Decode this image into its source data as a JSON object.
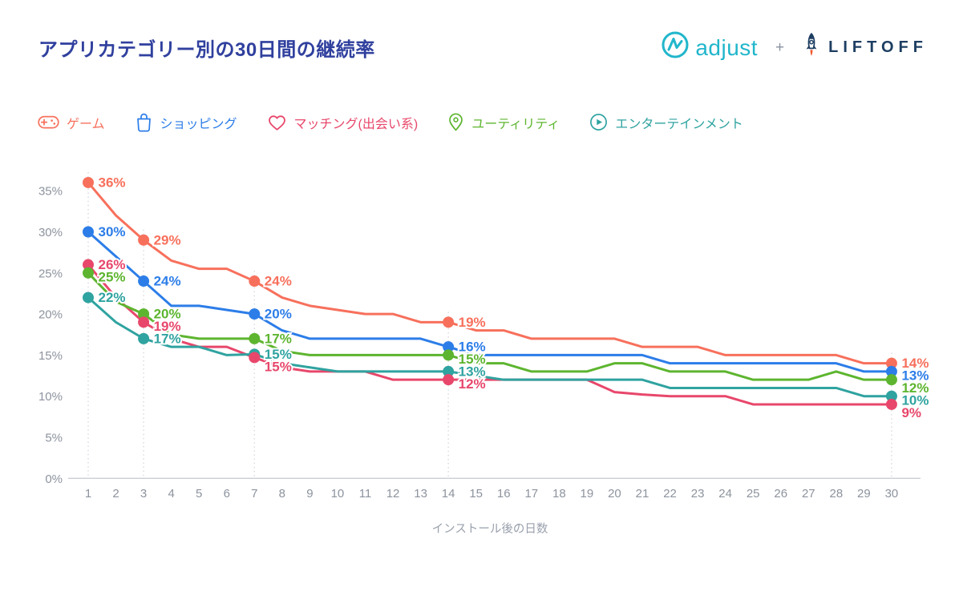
{
  "header": {
    "title": "アプリカテゴリー別の30日間の継続率",
    "title_color": "#30409E",
    "brand": {
      "adjust": "adjust",
      "adjust_color": "#21B6CB",
      "plus": "+",
      "liftoff": "LIFTOFF",
      "liftoff_color": "#1E3E62",
      "rocket_flame_color": "#F05A30"
    }
  },
  "legend": {
    "items": [
      {
        "id": "games",
        "label": "ゲーム",
        "color": "#F7705C",
        "icon": "gamepad-icon"
      },
      {
        "id": "shopping",
        "label": "ショッピング",
        "color": "#2C7DE8",
        "icon": "shopping-bag-icon"
      },
      {
        "id": "dating",
        "label": "マッチング(出会い系)",
        "color": "#E8476B",
        "icon": "heart-icon"
      },
      {
        "id": "utility",
        "label": "ユーティリティ",
        "color": "#5DB52F",
        "icon": "location-pin-icon"
      },
      {
        "id": "entertainment",
        "label": "エンターテインメント",
        "color": "#2FA3A0",
        "icon": "play-circle-icon"
      }
    ]
  },
  "chart_data": {
    "type": "line",
    "title": "アプリカテゴリー別の30日間の継続率",
    "xlabel": "インストール後の日数",
    "x": [
      1,
      2,
      3,
      4,
      5,
      6,
      7,
      8,
      9,
      10,
      11,
      12,
      13,
      14,
      15,
      16,
      17,
      18,
      19,
      20,
      21,
      22,
      23,
      24,
      25,
      26,
      27,
      28,
      29,
      30
    ],
    "ylim": [
      0,
      37
    ],
    "yticks": [
      0,
      5,
      10,
      15,
      20,
      25,
      30,
      35
    ],
    "ytick_suffix": "%",
    "grid": "dotted-vertical-at-labeled-days",
    "legend_position": "top",
    "labeled_days": [
      1,
      3,
      7,
      14,
      30
    ],
    "axis_text_color": "#8D939E",
    "axis_line_color": "#CBCED8",
    "grid_line_color": "#D7D9E0",
    "series": [
      {
        "id": "games",
        "name": "ゲーム",
        "color": "#F7705C",
        "values": [
          36,
          32,
          29,
          26.5,
          25.5,
          25.5,
          24,
          22,
          21,
          20.5,
          20,
          20,
          19,
          19,
          18,
          18,
          17,
          17,
          17,
          17,
          16,
          16,
          16,
          15,
          15,
          15,
          15,
          15,
          14,
          14
        ],
        "labels": {
          "1": "36%",
          "3": "29%",
          "7": "24%",
          "14": "19%",
          "30": "14%"
        }
      },
      {
        "id": "shopping",
        "name": "ショッピング",
        "color": "#2C7DE8",
        "values": [
          30,
          27,
          24,
          21,
          21,
          20.5,
          20,
          18,
          17,
          17,
          17,
          17,
          17,
          16,
          15,
          15,
          15,
          15,
          15,
          15,
          15,
          14,
          14,
          14,
          14,
          14,
          14,
          14,
          13,
          13
        ],
        "labels": {
          "1": "30%",
          "3": "24%",
          "7": "20%",
          "14": "16%",
          "30": "13%"
        }
      },
      {
        "id": "dating",
        "name": "マッチング(出会い系)",
        "color": "#E8476B",
        "values": [
          26,
          22,
          19,
          17,
          16,
          16,
          14.7,
          13.5,
          13,
          13,
          13,
          12,
          12,
          12,
          12,
          12,
          12,
          12,
          12,
          10.5,
          10.2,
          10,
          10,
          10,
          9,
          9,
          9,
          9,
          9,
          9
        ],
        "labels": {
          "1": "26%",
          "3": "19%",
          "7": "15%",
          "14": "12%",
          "30": "9%"
        }
      },
      {
        "id": "utility",
        "name": "ユーティリティ",
        "color": "#5DB52F",
        "values": [
          25,
          21.5,
          20,
          17.5,
          17,
          17,
          17,
          15.5,
          15,
          15,
          15,
          15,
          15,
          15,
          14,
          14,
          13,
          13,
          13,
          14,
          14,
          13,
          13,
          13,
          12,
          12,
          12,
          13,
          12,
          12
        ],
        "labels": {
          "1": "25%",
          "3": "20%",
          "7": "17%",
          "14": "15%",
          "30": "12%"
        }
      },
      {
        "id": "entertainment",
        "name": "エンターテインメント",
        "color": "#2FA3A0",
        "values": [
          22,
          19,
          17,
          16,
          16,
          15,
          15.1,
          14,
          13.5,
          13,
          13,
          13,
          13,
          13,
          12.5,
          12,
          12,
          12,
          12,
          12,
          12,
          11,
          11,
          11,
          11,
          11,
          11,
          11,
          10,
          10
        ],
        "labels": {
          "1": "22%",
          "3": "17%",
          "7": "15%",
          "14": "13%",
          "30": "10%"
        }
      }
    ]
  }
}
